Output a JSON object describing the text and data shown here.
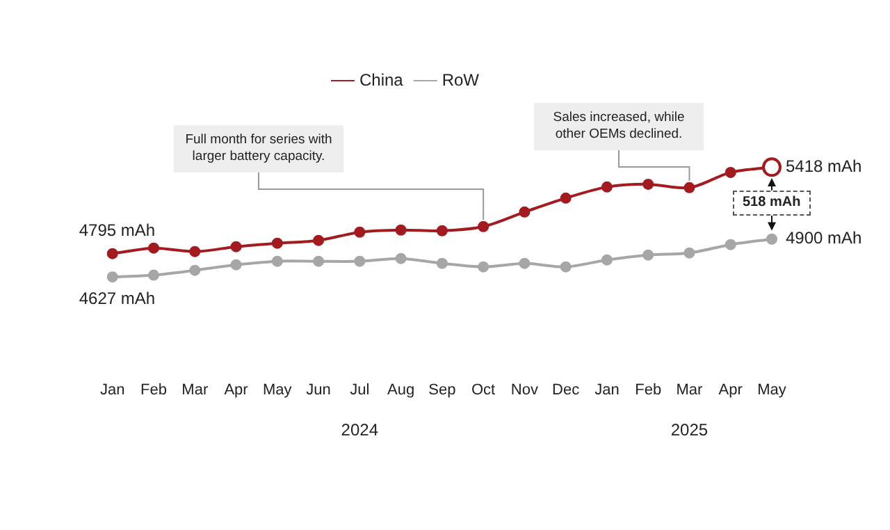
{
  "chart_data": {
    "type": "line",
    "categories": [
      "Jan",
      "Feb",
      "Mar",
      "Apr",
      "May",
      "Jun",
      "Jul",
      "Aug",
      "Sep",
      "Oct",
      "Nov",
      "Dec",
      "Jan",
      "Feb",
      "Mar",
      "Apr",
      "May"
    ],
    "series": [
      {
        "name": "China",
        "color": "#a31b1f",
        "values": [
          4795,
          4835,
          4810,
          4845,
          4870,
          4890,
          4950,
          4965,
          4960,
          4990,
          5095,
          5195,
          5275,
          5295,
          5270,
          5380,
          5418
        ],
        "value_labels": [
          "4795 mAh",
          null,
          null,
          null,
          null,
          null,
          null,
          null,
          null,
          null,
          null,
          null,
          null,
          null,
          null,
          null,
          "5418 mAh"
        ]
      },
      {
        "name": "RoW",
        "color": "#a6a6a6",
        "values": [
          4627,
          4640,
          4675,
          4715,
          4740,
          4740,
          4740,
          4760,
          4725,
          4700,
          4725,
          4700,
          4750,
          4785,
          4800,
          4860,
          4900
        ],
        "value_labels": [
          "4627 mAh",
          null,
          null,
          null,
          null,
          null,
          null,
          null,
          null,
          null,
          null,
          null,
          null,
          null,
          null,
          null,
          "4900 mAh"
        ]
      }
    ],
    "tick_labels": "x",
    "grid": false,
    "legend": "top",
    "marker": "circle",
    "line_style": "solid",
    "annotations": [
      "Full month for series with larger battery capacity.",
      "Sales increased, while other OEMs declined.",
      "518 mAh",
      "2024",
      "2025"
    ]
  }
}
